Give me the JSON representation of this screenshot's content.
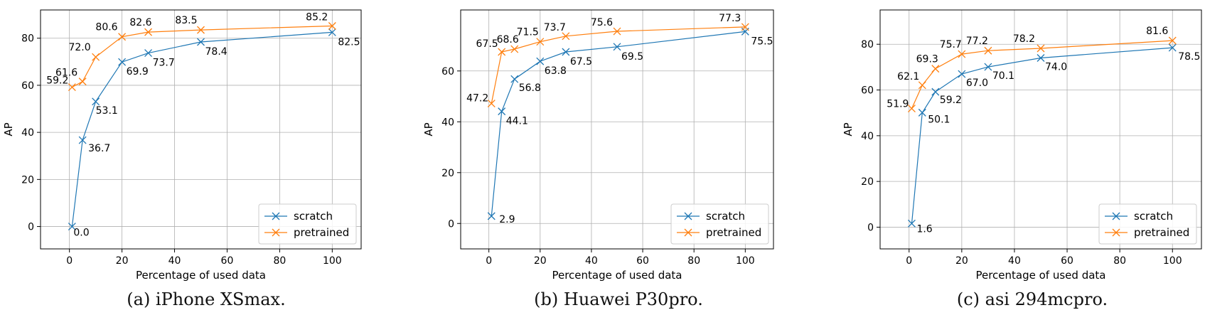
{
  "chart_data": [
    {
      "type": "line",
      "caption": "(a) iPhone XSmax.",
      "xlabel": "Percentage of used data",
      "ylabel": "AP",
      "xlim": [
        -11,
        111
      ],
      "ylim": [
        -9.5,
        92
      ],
      "xticks": [
        0,
        20,
        40,
        60,
        80,
        100
      ],
      "yticks": [
        0,
        20,
        40,
        60,
        80
      ],
      "grid": true,
      "legend": "bottom-right",
      "x": [
        1,
        5,
        10,
        20,
        30,
        50,
        100
      ],
      "series": [
        {
          "name": "scratch",
          "color": "#1f77b4",
          "values": [
            0.0,
            36.7,
            53.1,
            69.9,
            73.7,
            78.4,
            82.5
          ],
          "labels": [
            "0.0",
            "36.7",
            "53.1",
            "69.9",
            "73.7",
            "78.4",
            "82.5"
          ]
        },
        {
          "name": "pretrained",
          "color": "#ff7f0e",
          "values": [
            59.2,
            61.6,
            72.0,
            80.6,
            82.6,
            83.5,
            85.2
          ],
          "labels": [
            "59.2",
            "61.6",
            "72.0",
            "80.6",
            "82.6",
            "83.5",
            "85.2"
          ]
        }
      ]
    },
    {
      "type": "line",
      "caption": "(b) Huawei P30pro.",
      "xlabel": "Percentage of used data",
      "ylabel": "AP",
      "xlim": [
        -11,
        111
      ],
      "ylim": [
        -10,
        84
      ],
      "xticks": [
        0,
        20,
        40,
        60,
        80,
        100
      ],
      "yticks": [
        0,
        20,
        40,
        60
      ],
      "grid": true,
      "legend": "bottom-right",
      "x": [
        1,
        5,
        10,
        20,
        30,
        50,
        100
      ],
      "series": [
        {
          "name": "scratch",
          "color": "#1f77b4",
          "values": [
            2.9,
            44.1,
            56.8,
            63.8,
            67.5,
            69.5,
            75.5
          ],
          "labels": [
            "2.9",
            "44.1",
            "56.8",
            "63.8",
            "67.5",
            "69.5",
            "75.5"
          ]
        },
        {
          "name": "pretrained",
          "color": "#ff7f0e",
          "values": [
            47.2,
            67.5,
            68.6,
            71.5,
            73.7,
            75.6,
            77.3
          ],
          "labels": [
            "47.2",
            "67.5",
            "68.6",
            "71.5",
            "73.7",
            "75.6",
            "77.3"
          ]
        }
      ]
    },
    {
      "type": "line",
      "caption": "(c) asi 294mcpro.",
      "xlabel": "Percentage of used data",
      "ylabel": "AP",
      "xlim": [
        -11,
        111
      ],
      "ylim": [
        -9.5,
        95
      ],
      "xticks": [
        0,
        20,
        40,
        60,
        80,
        100
      ],
      "yticks": [
        0,
        20,
        40,
        60,
        80
      ],
      "grid": true,
      "legend": "bottom-right",
      "x": [
        1,
        5,
        10,
        20,
        30,
        50,
        100
      ],
      "series": [
        {
          "name": "scratch",
          "color": "#1f77b4",
          "values": [
            1.6,
            50.1,
            59.2,
            67.0,
            70.1,
            74.0,
            78.5
          ],
          "labels": [
            "1.6",
            "50.1",
            "59.2",
            "67.0",
            "70.1",
            "74.0",
            "78.5"
          ]
        },
        {
          "name": "pretrained",
          "color": "#ff7f0e",
          "values": [
            51.9,
            62.1,
            69.3,
            75.7,
            77.2,
            78.2,
            81.6
          ],
          "labels": [
            "51.9",
            "62.1",
            "69.3",
            "75.7",
            "77.2",
            "78.2",
            "81.6"
          ]
        }
      ]
    }
  ]
}
